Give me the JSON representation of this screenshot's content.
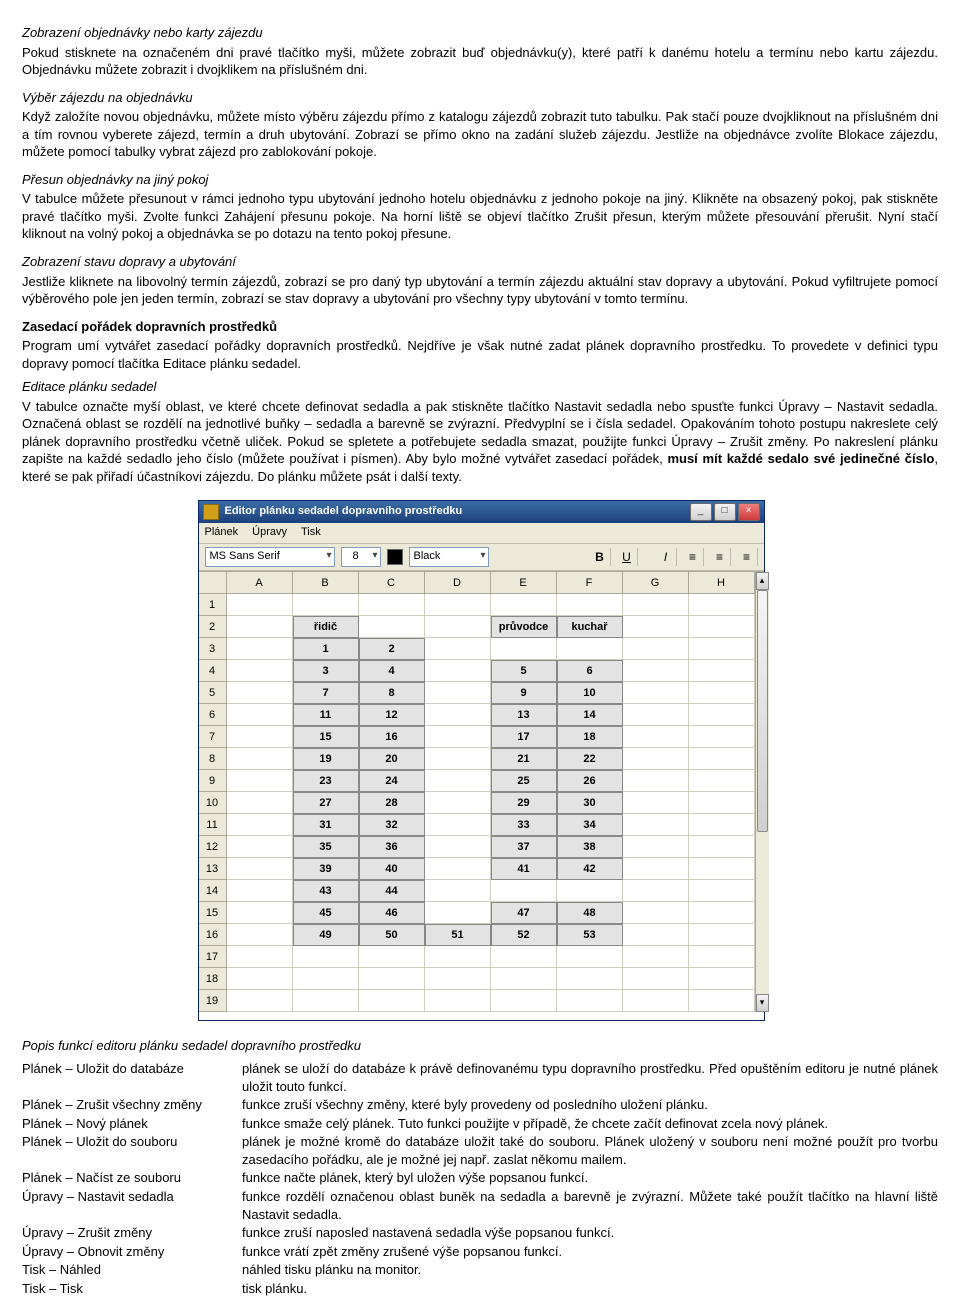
{
  "sections": {
    "s1_title": "Zobrazení objednávky nebo karty zájezdu",
    "s1_text": "Pokud stisknete na označeném dni pravé tlačítko myši, můžete zobrazit buď objednávku(y), které patří k danému hotelu a termínu nebo kartu zájezdu. Objednávku můžete zobrazit i dvojklikem na příslušném dni.",
    "s2_title": "Výběr zájezdu na objednávku",
    "s2_text": "Když založíte novou objednávku, můžete místo výběru zájezdu přímo z katalogu zájezdů zobrazit tuto tabulku. Pak stačí pouze dvojkliknout na příslušném dni a tím rovnou vyberete zájezd, termín a druh ubytování. Zobrazí se přímo okno na zadání služeb zájezdu. Jestliže na objednávce zvolíte Blokace zájezdu, můžete pomocí tabulky vybrat zájezd pro zablokování pokoje.",
    "s3_title": "Přesun objednávky na jiný pokoj",
    "s3_text": "V tabulce můžete přesunout v rámci jednoho typu ubytování jednoho hotelu objednávku z jednoho pokoje na jiný. Klikněte na obsazený pokoj, pak stiskněte pravé tlačítko myši. Zvolte funkci Zahájení přesunu pokoje. Na horní liště se objeví tlačítko Zrušit přesun, kterým můžete přesouvání přerušit. Nyní stačí kliknout na volný pokoj a objednávka se po dotazu na tento pokoj přesune.",
    "s4_title": "Zobrazení stavu dopravy a ubytování",
    "s4_text": "Jestliže kliknete na libovolný termín zájezdů, zobrazí se pro daný typ ubytování a termín zájezdu aktuální stav dopravy a ubytování. Pokud vyfiltrujete pomocí výběrového pole jen jeden termín, zobrazí se stav dopravy a ubytování pro všechny typy ubytování v tomto termínu.",
    "s5_title": "Zasedací pořádek dopravních prostředků",
    "s5_text": "Program umí vytvářet zasedací pořádky dopravních prostředků. Nejdříve je však nutné zadat plánek dopravního prostředku. To provedete v definici typu dopravy pomocí tlačítka Editace plánku sedadel.",
    "s6_title": "Editace plánku sedadel",
    "s6_text_a": "V tabulce označte myší oblast, ve které chcete definovat sedadla a pak stiskněte tlačítko Nastavit sedadla nebo spusťte funkci Úpravy – Nastavit sedadla. Označená oblast se rozdělí na jednotlivé buňky – sedadla a barevně se zvýrazní. Předvyplní se i čísla sedadel. Opakováním tohoto postupu nakreslete celý plánek dopravního prostředku včetně uliček. Pokud se spletete a potřebujete sedadla smazat, použijte funkci Úpravy – Zrušit změny. Po nakreslení plánku zapište na každé sedadlo jeho číslo (můžete používat i písmen). Aby bylo možné vytvářet zasedací pořádek, ",
    "s6_text_bold": "musí mít každé sedalo své jedinečné číslo",
    "s6_text_b": ", které se pak přiřadí účastníkovi zájezdu. Do plánku můžete psát i další texty."
  },
  "editor": {
    "window_title": "Editor plánku sedadel dopravního prostředku",
    "menu": [
      "Plánek",
      "Úpravy",
      "Tisk"
    ],
    "font_name": "MS Sans Serif",
    "font_size": "8",
    "color_name": "Black",
    "btns": {
      "b": "B",
      "u": "U",
      "i": "I"
    },
    "cols": [
      "A",
      "B",
      "C",
      "D",
      "E",
      "F",
      "G",
      "H"
    ],
    "row_labels": [
      "1",
      "2",
      "3",
      "4",
      "5",
      "6",
      "7",
      "8",
      "9",
      "10",
      "11",
      "12",
      "13",
      "14",
      "15",
      "16",
      "17",
      "18",
      "19"
    ],
    "layout": {
      "2": {
        "B": "řidič",
        "E": "průvodce",
        "F": "kuchař"
      },
      "3": {
        "B": "1",
        "C": "2"
      },
      "4": {
        "B": "3",
        "C": "4",
        "E": "5",
        "F": "6"
      },
      "5": {
        "B": "7",
        "C": "8",
        "E": "9",
        "F": "10"
      },
      "6": {
        "B": "11",
        "C": "12",
        "E": "13",
        "F": "14"
      },
      "7": {
        "B": "15",
        "C": "16",
        "E": "17",
        "F": "18"
      },
      "8": {
        "B": "19",
        "C": "20",
        "E": "21",
        "F": "22"
      },
      "9": {
        "B": "23",
        "C": "24",
        "E": "25",
        "F": "26"
      },
      "10": {
        "B": "27",
        "C": "28",
        "E": "29",
        "F": "30"
      },
      "11": {
        "B": "31",
        "C": "32",
        "E": "33",
        "F": "34"
      },
      "12": {
        "B": "35",
        "C": "36",
        "E": "37",
        "F": "38"
      },
      "13": {
        "B": "39",
        "C": "40",
        "E": "41",
        "F": "42"
      },
      "14": {
        "B": "43",
        "C": "44"
      },
      "15": {
        "B": "45",
        "C": "46",
        "E": "47",
        "F": "48"
      },
      "16": {
        "B": "49",
        "C": "50",
        "D": "51",
        "E": "52",
        "F": "53"
      }
    }
  },
  "functions": {
    "header": "Popis funkcí editoru plánku sedadel dopravního prostředku",
    "rows": [
      {
        "key": "Plánek – Uložit do databáze",
        "desc": "plánek se uloží do databáze k právě definovanému typu dopravního prostředku. Před opuštěním editoru je nutné plánek uložit touto funkcí."
      },
      {
        "key": "Plánek – Zrušit všechny změny",
        "desc": "funkce zruší všechny změny, které byly provedeny od posledního uložení plánku."
      },
      {
        "key": "Plánek – Nový plánek",
        "desc": "funkce smaže celý plánek. Tuto funkci použijte v případě, že chcete začít definovat zcela nový plánek."
      },
      {
        "key": "Plánek – Uložit do souboru",
        "desc": "plánek je možné kromě do databáze uložit také do souboru. Plánek uložený v souboru není možné použít pro tvorbu zasedacího pořádku, ale je možné jej např. zaslat někomu mailem."
      },
      {
        "key": "Plánek – Načíst ze souboru",
        "desc": "funkce načte plánek, který byl uložen výše popsanou funkcí."
      },
      {
        "key": "Úpravy – Nastavit sedadla",
        "desc": "funkce rozdělí označenou oblast buněk na sedadla a barevně je zvýrazní. Můžete také použít tlačítko na hlavní liště Nastavit sedadla."
      },
      {
        "key": "Úpravy – Zrušit změny",
        "desc": "funkce zruší naposled nastavená sedadla výše popsanou funkcí."
      },
      {
        "key": "Úpravy – Obnovit změny",
        "desc": "funkce vrátí zpět změny zrušené výše popsanou funkcí."
      },
      {
        "key": "Tisk – Náhled",
        "desc": "náhled tisku plánku na monitor."
      },
      {
        "key": "Tisk – Tisk",
        "desc": "tisk plánku."
      }
    ]
  }
}
